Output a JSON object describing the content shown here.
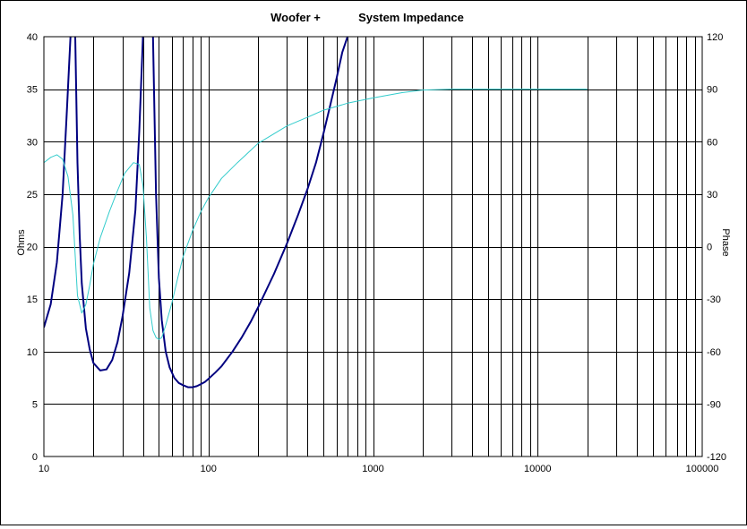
{
  "chart_data": {
    "type": "line",
    "title_parts": [
      "Woofer +",
      "System Impedance"
    ],
    "ylabel_left": "Ohms",
    "ylabel_right": "Phase",
    "x_scale": "log",
    "xlim": [
      10,
      100000
    ],
    "ylim_left": [
      0,
      40
    ],
    "ylim_right": [
      -120,
      120
    ],
    "x_tick_labels": [
      "10",
      "100",
      "1000",
      "10000",
      "100000"
    ],
    "y_left_ticks": [
      "0",
      "5",
      "10",
      "15",
      "20",
      "25",
      "30",
      "35",
      "40"
    ],
    "y_right_ticks": [
      "-120",
      "-90",
      "-60",
      "-30",
      "0",
      "30",
      "60",
      "90",
      "120"
    ],
    "grid": true,
    "series": [
      {
        "axis": "left",
        "color": "#000080",
        "x": [
          10,
          11,
          12,
          13,
          13.8,
          14.5,
          15,
          15.5,
          16,
          16.5,
          17,
          18,
          19,
          20,
          22,
          24,
          26,
          28,
          30,
          33,
          36,
          38,
          40,
          42,
          44,
          46,
          48,
          50,
          52,
          55,
          58,
          62,
          66,
          70,
          75,
          80,
          85,
          90,
          95,
          100,
          110,
          120,
          140,
          160,
          180,
          200,
          250,
          300,
          350,
          400,
          450,
          500,
          550,
          600,
          650,
          700
        ],
        "y": [
          12.3,
          14.5,
          18.5,
          25,
          33,
          40,
          45,
          40,
          28,
          21,
          16.5,
          12.2,
          10.2,
          8.9,
          8.2,
          8.3,
          9.2,
          10.9,
          13.3,
          17.5,
          23.5,
          31,
          40,
          45,
          45,
          40,
          25,
          17,
          13,
          10,
          8.5,
          7.5,
          7.0,
          6.8,
          6.6,
          6.6,
          6.7,
          6.9,
          7.1,
          7.4,
          8.0,
          8.6,
          10.0,
          11.4,
          12.8,
          14.2,
          17.4,
          20.3,
          23.0,
          25.5,
          28.0,
          30.8,
          33.5,
          36.0,
          38.5,
          40
        ]
      },
      {
        "axis": "right",
        "color": "#33CCCC",
        "x": [
          10,
          11,
          12,
          13,
          14,
          15,
          16,
          17,
          18,
          19,
          20,
          22,
          25,
          28,
          31,
          35,
          38,
          40,
          42,
          44,
          46,
          48,
          50,
          52,
          55,
          60,
          65,
          70,
          80,
          90,
          100,
          120,
          150,
          200,
          300,
          400,
          500,
          700,
          1000,
          1500,
          2000,
          3000,
          5000,
          10000,
          20000
        ],
        "y": [
          48,
          51,
          52.5,
          50,
          40,
          18,
          -28,
          -38,
          -33,
          -22,
          -10,
          5,
          20,
          32,
          42,
          48,
          47,
          35,
          5,
          -35,
          -48,
          -52,
          -53,
          -52,
          -45,
          -32,
          -18,
          -6,
          9,
          20,
          28,
          39,
          48,
          59,
          69,
          74,
          78,
          82,
          85,
          88,
          89.5,
          90,
          90,
          90,
          90
        ]
      }
    ]
  }
}
